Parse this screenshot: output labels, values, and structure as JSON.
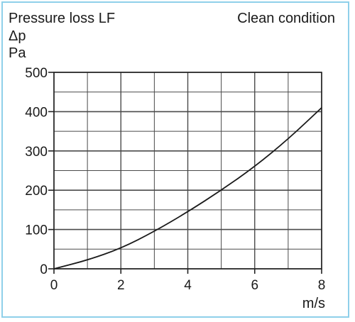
{
  "chart_data": {
    "type": "line",
    "title": "Pressure loss LF",
    "subtitle": "Clean condition",
    "ylabel_symbol": "Δp",
    "ylabel_unit": "Pa",
    "xlabel": "m/s",
    "xlim": [
      0,
      8
    ],
    "ylim": [
      0,
      500
    ],
    "x_ticks": [
      0,
      2,
      4,
      6,
      8
    ],
    "y_ticks": [
      0,
      100,
      200,
      300,
      400,
      500
    ],
    "x_minor_step": 1,
    "y_minor_step": 50,
    "grid": true,
    "series": [
      {
        "x": [
          0,
          1,
          2,
          3,
          4,
          5,
          6,
          7,
          8
        ],
        "values": [
          0,
          22,
          52,
          95,
          145,
          200,
          260,
          330,
          410
        ]
      }
    ],
    "colors": {
      "line": "#1a1a1a",
      "grid": "#4a4a4a",
      "border": "#8fd0ea"
    }
  }
}
